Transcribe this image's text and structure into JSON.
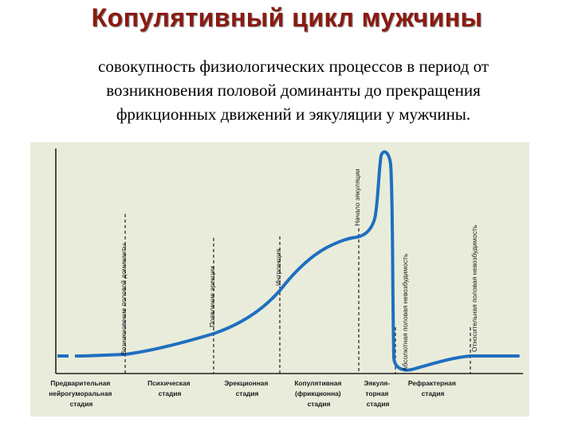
{
  "slide": {
    "title": "Копулятивный цикл мужчины",
    "definition_lines": [
      "совокупность физиологических процессов в период от",
      "возникновения половой доминанты до прекращения",
      "фрикционных движений и эякуляции у мужчины."
    ]
  },
  "figure": {
    "curve_color": "#1f6fc0",
    "event_labels": [
      "Возникновение  половой  доминанты",
      "Появление  эрекции",
      "Интроекция",
      "Начало  эякуляции",
      "Абсолютная  половая  невозбудимость",
      "Относительная  половая  невозбудимость"
    ],
    "stages": [
      [
        "Предварительная",
        "нейрогуморальная",
        "стадия"
      ],
      [
        "Психическая",
        "стадия"
      ],
      [
        "Эрекционная",
        "стадия"
      ],
      [
        "Копулятивная",
        "(фрикционна)",
        "стадия"
      ],
      [
        "Эякуля-",
        "торная",
        "стадия"
      ],
      [
        "Рефрактерная",
        "стадия"
      ]
    ]
  }
}
